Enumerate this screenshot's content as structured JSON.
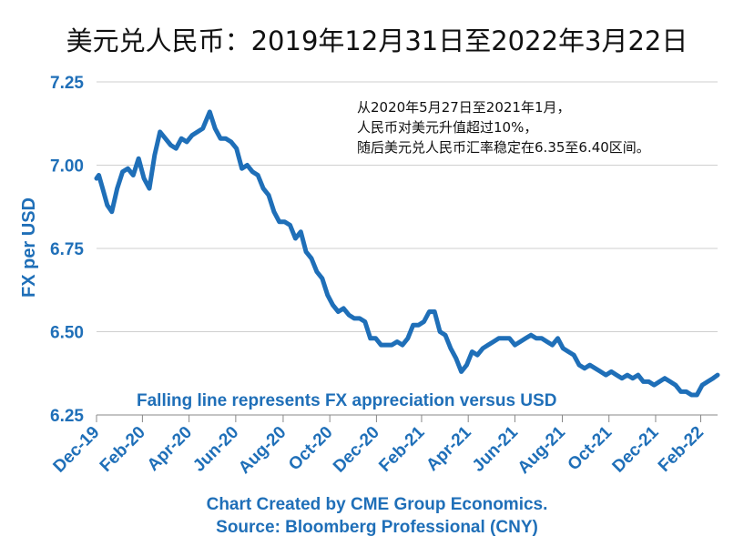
{
  "chart_data": {
    "type": "line",
    "title": "美元兑人民币：2019年12月31日至2022年3月22日",
    "ylabel": "FX per USD",
    "xlabel": "",
    "ylim": [
      6.25,
      7.25
    ],
    "yticks": [
      "7.25",
      "7.00",
      "6.75",
      "6.50",
      "6.25"
    ],
    "ytick_values": [
      7.25,
      7.0,
      6.75,
      6.5,
      6.25
    ],
    "xticks": [
      "Dec-19",
      "Feb-20",
      "Apr-20",
      "Jun-20",
      "Aug-20",
      "Oct-20",
      "Dec-20",
      "Feb-21",
      "Apr-21",
      "Jun-21",
      "Aug-21",
      "Oct-21",
      "Dec-21",
      "Feb-22"
    ],
    "xtick_dates": [
      "2019-12-31",
      "2020-02-29",
      "2020-04-30",
      "2020-06-30",
      "2020-08-31",
      "2020-10-31",
      "2020-12-31",
      "2021-02-28",
      "2021-04-30",
      "2021-06-30",
      "2021-08-31",
      "2021-10-31",
      "2021-12-31",
      "2022-02-28"
    ],
    "xlim": [
      "2019-12-31",
      "2022-03-22"
    ],
    "grid": true,
    "line_color": "#1f6fb8",
    "series": [
      {
        "x": [
          "2019-12-31",
          "2020-01-03",
          "2020-01-08",
          "2020-01-14",
          "2020-01-20",
          "2020-01-27",
          "2020-02-03",
          "2020-02-10",
          "2020-02-17",
          "2020-02-24",
          "2020-03-02",
          "2020-03-09",
          "2020-03-16",
          "2020-03-23",
          "2020-03-30",
          "2020-04-06",
          "2020-04-13",
          "2020-04-20",
          "2020-04-27",
          "2020-05-04",
          "2020-05-11",
          "2020-05-18",
          "2020-05-27",
          "2020-06-03",
          "2020-06-10",
          "2020-06-17",
          "2020-06-24",
          "2020-07-01",
          "2020-07-08",
          "2020-07-15",
          "2020-07-22",
          "2020-07-29",
          "2020-08-05",
          "2020-08-12",
          "2020-08-19",
          "2020-08-26",
          "2020-09-02",
          "2020-09-09",
          "2020-09-16",
          "2020-09-23",
          "2020-09-30",
          "2020-10-07",
          "2020-10-14",
          "2020-10-21",
          "2020-10-28",
          "2020-11-04",
          "2020-11-11",
          "2020-11-18",
          "2020-11-25",
          "2020-12-02",
          "2020-12-09",
          "2020-12-16",
          "2020-12-23",
          "2020-12-30",
          "2021-01-06",
          "2021-01-13",
          "2021-01-20",
          "2021-01-27",
          "2021-02-03",
          "2021-02-10",
          "2021-02-17",
          "2021-02-24",
          "2021-03-03",
          "2021-03-10",
          "2021-03-17",
          "2021-03-24",
          "2021-03-31",
          "2021-04-07",
          "2021-04-14",
          "2021-04-21",
          "2021-04-28",
          "2021-05-05",
          "2021-05-12",
          "2021-05-19",
          "2021-05-26",
          "2021-06-02",
          "2021-06-09",
          "2021-06-16",
          "2021-06-23",
          "2021-06-30",
          "2021-07-07",
          "2021-07-14",
          "2021-07-21",
          "2021-07-28",
          "2021-08-04",
          "2021-08-11",
          "2021-08-18",
          "2021-08-25",
          "2021-09-01",
          "2021-09-08",
          "2021-09-15",
          "2021-09-22",
          "2021-09-29",
          "2021-10-06",
          "2021-10-13",
          "2021-10-20",
          "2021-10-27",
          "2021-11-03",
          "2021-11-10",
          "2021-11-17",
          "2021-11-24",
          "2021-12-01",
          "2021-12-08",
          "2021-12-15",
          "2021-12-22",
          "2021-12-29",
          "2022-01-05",
          "2022-01-12",
          "2022-01-19",
          "2022-01-26",
          "2022-02-02",
          "2022-02-09",
          "2022-02-16",
          "2022-02-23",
          "2022-03-02",
          "2022-03-09",
          "2022-03-16",
          "2022-03-22"
        ],
        "y": [
          6.96,
          6.97,
          6.93,
          6.88,
          6.86,
          6.93,
          6.98,
          6.99,
          6.97,
          7.02,
          6.96,
          6.93,
          7.03,
          7.1,
          7.08,
          7.06,
          7.05,
          7.08,
          7.07,
          7.09,
          7.1,
          7.11,
          7.16,
          7.11,
          7.08,
          7.08,
          7.07,
          7.05,
          6.99,
          7.0,
          6.98,
          6.97,
          6.93,
          6.91,
          6.86,
          6.83,
          6.83,
          6.82,
          6.78,
          6.8,
          6.74,
          6.72,
          6.68,
          6.66,
          6.61,
          6.58,
          6.56,
          6.57,
          6.55,
          6.54,
          6.54,
          6.53,
          6.48,
          6.48,
          6.46,
          6.46,
          6.46,
          6.47,
          6.46,
          6.48,
          6.52,
          6.52,
          6.53,
          6.56,
          6.56,
          6.5,
          6.49,
          6.45,
          6.42,
          6.38,
          6.4,
          6.44,
          6.43,
          6.45,
          6.46,
          6.47,
          6.48,
          6.48,
          6.48,
          6.46,
          6.47,
          6.48,
          6.49,
          6.48,
          6.48,
          6.47,
          6.46,
          6.48,
          6.45,
          6.44,
          6.43,
          6.4,
          6.39,
          6.4,
          6.39,
          6.38,
          6.37,
          6.38,
          6.37,
          6.36,
          6.37,
          6.36,
          6.37,
          6.35,
          6.35,
          6.34,
          6.35,
          6.36,
          6.35,
          6.34,
          6.32,
          6.32,
          6.31,
          6.31,
          6.34,
          6.35,
          6.36,
          6.37
        ]
      }
    ],
    "annotations": [
      "从2020年5月27日至2021年1月，",
      "人民币对美元升值超过10%，",
      "随后美元兑人民币汇率稳定在6.35至6.40区间。"
    ],
    "caption": "Falling line represents FX appreciation versus USD",
    "credits": [
      "Chart Created by CME Group Economics.",
      "Source:  Bloomberg Professional (CNY)"
    ]
  }
}
